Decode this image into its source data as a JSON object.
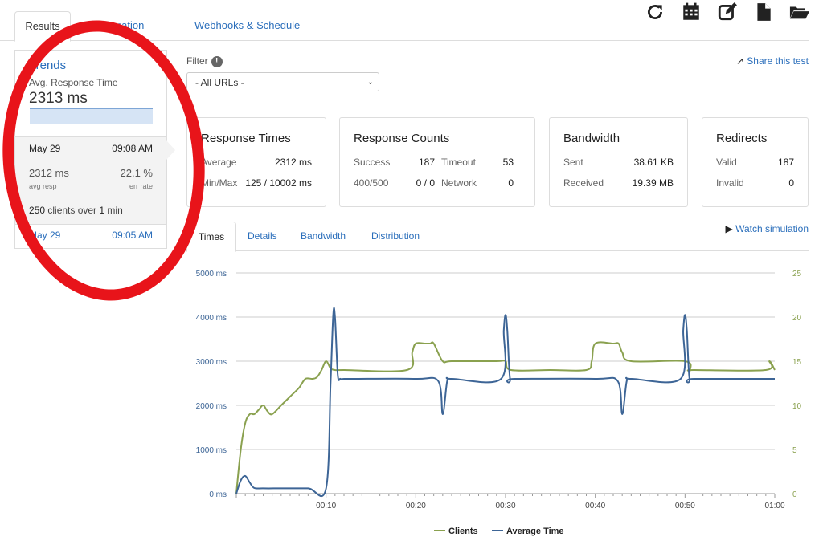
{
  "tabs": [
    "Results",
    "Configuration",
    "Webhooks & Schedule"
  ],
  "toolbar": [
    "refresh-icon",
    "calendar-icon",
    "edit-icon",
    "file-icon",
    "folder-icon"
  ],
  "trends": {
    "title": "Trends",
    "subtitle": "Avg. Response Time",
    "value": "2313 ms",
    "selected": {
      "date": "May 29",
      "time": "09:08 AM",
      "avg_resp": "2312 ms",
      "avg_resp_label": "avg resp",
      "err_rate": "22.1 %",
      "err_rate_label": "err rate",
      "clients_num": "250",
      "clients_mid": " clients over ",
      "clients_dur": "1",
      "clients_unit": " min"
    },
    "other": {
      "date": "May 29",
      "time": "09:05 AM"
    }
  },
  "filter": {
    "label": "Filter",
    "info": "!",
    "selected": "- All URLs -"
  },
  "share_label": "Share this test",
  "cards": {
    "response_times": {
      "title": "Response Times",
      "average_label": "Average",
      "average": "2312 ms",
      "minmax_label": "Min/Max",
      "minmax": "125 / 10002 ms"
    },
    "response_counts": {
      "title": "Response Counts",
      "success_label": "Success",
      "success": "187",
      "timeout_label": "Timeout",
      "timeout": "53",
      "e400_label": "400/500",
      "e400": "0 / 0",
      "network_label": "Network",
      "network": "0"
    },
    "bandwidth": {
      "title": "Bandwidth",
      "sent_label": "Sent",
      "sent": "38.61 KB",
      "received_label": "Received",
      "received": "19.39 MB"
    },
    "redirects": {
      "title": "Redirects",
      "valid_label": "Valid",
      "valid": "187",
      "invalid_label": "Invalid",
      "invalid": "0"
    }
  },
  "sub_tabs": [
    "Times",
    "Details",
    "Bandwidth",
    "Distribution"
  ],
  "watch_label": "Watch simulation",
  "colors": {
    "clients": "#8aa14f",
    "avg_time": "#3d6596",
    "link": "#2a6ebb",
    "annotation": "#e8141a"
  },
  "chart_data": {
    "type": "line",
    "x_unit": "seconds",
    "x_ticks": [
      "00:10",
      "00:20",
      "00:30",
      "00:40",
      "00:50",
      "01:00"
    ],
    "y_left_ticks": [
      "0 ms",
      "1000 ms",
      "2000 ms",
      "3000 ms",
      "4000 ms",
      "5000 ms"
    ],
    "y_right_ticks": [
      "0",
      "5",
      "10",
      "15",
      "20",
      "25"
    ],
    "ylim_left": [
      0,
      5000
    ],
    "ylim_right": [
      0,
      25
    ],
    "grid": true,
    "legend_position": "bottom",
    "series": [
      {
        "name": "Clients",
        "axis": "right",
        "x": [
          0,
          0.5,
          1,
          1.5,
          2,
          2.5,
          3,
          3.5,
          4,
          5,
          6,
          7,
          7.7,
          8.5,
          9,
          9.5,
          10,
          10.5,
          11,
          12,
          19,
          19.6,
          20,
          21,
          21.6,
          22,
          23,
          24,
          29,
          30,
          30.6,
          35,
          39,
          39.6,
          40,
          42,
          42.6,
          43,
          44,
          50,
          50.6,
          51,
          59,
          59.4,
          60
        ],
        "values": [
          0,
          5,
          8,
          9,
          9,
          9.5,
          10,
          9.3,
          9,
          10,
          11,
          12,
          13,
          13,
          13.2,
          14,
          15,
          14.2,
          14,
          14,
          14,
          16,
          17,
          17,
          17,
          17,
          15,
          15,
          15,
          15,
          14,
          14,
          14,
          15,
          17,
          17,
          17,
          16,
          15,
          15,
          14,
          14,
          14,
          15,
          14
        ]
      },
      {
        "name": "Average Time",
        "axis": "left",
        "x": [
          0,
          0.5,
          1,
          1.5,
          2,
          3,
          5,
          8,
          10,
          10.5,
          10.8,
          11,
          11.3,
          11.6,
          12,
          13,
          20,
          22.5,
          23,
          23.5,
          24,
          29.5,
          29.8,
          30,
          30.2,
          30.5,
          31,
          40,
          42.5,
          43,
          43.5,
          44,
          49.5,
          49.8,
          50,
          50.2,
          50.5,
          51,
          60
        ],
        "values": [
          0,
          300,
          400,
          250,
          130,
          120,
          120,
          120,
          120,
          2500,
          4050,
          4000,
          2700,
          2600,
          2600,
          2600,
          2600,
          2550,
          1800,
          2550,
          2600,
          2600,
          3700,
          4050,
          3700,
          2600,
          2600,
          2600,
          2550,
          1800,
          2550,
          2600,
          2600,
          3700,
          4050,
          3700,
          2600,
          2600,
          2600
        ]
      }
    ]
  }
}
